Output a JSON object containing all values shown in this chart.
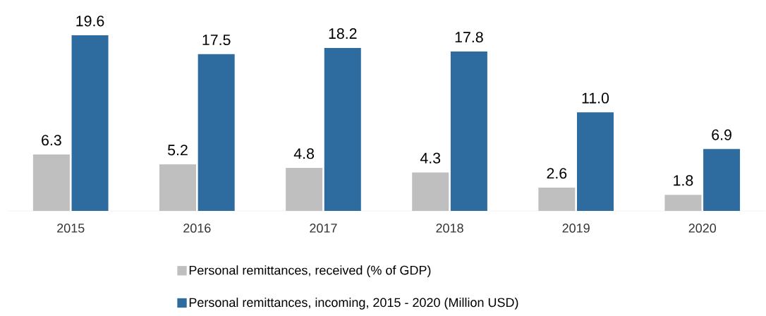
{
  "chart_data": {
    "type": "bar",
    "categories": [
      "2015",
      "2016",
      "2017",
      "2018",
      "2019",
      "2020"
    ],
    "series": [
      {
        "name": "Personal remittances, received (% of GDP)",
        "color": "#bfbfbf",
        "values": [
          6.3,
          5.2,
          4.8,
          4.3,
          2.6,
          1.8
        ],
        "value_labels": [
          "6.3",
          "5.2",
          "4.8",
          "4.3",
          "2.6",
          "1.8"
        ]
      },
      {
        "name": "Personal remittances, incoming, 2015 - 2020 (Million USD)",
        "color": "#2e6b9e",
        "values": [
          19.6,
          17.5,
          18.2,
          17.8,
          11.0,
          6.9
        ],
        "value_labels": [
          "19.6",
          "17.5",
          "18.2",
          "17.8",
          "11.0",
          "6.9"
        ]
      }
    ],
    "legend": "bottom"
  }
}
